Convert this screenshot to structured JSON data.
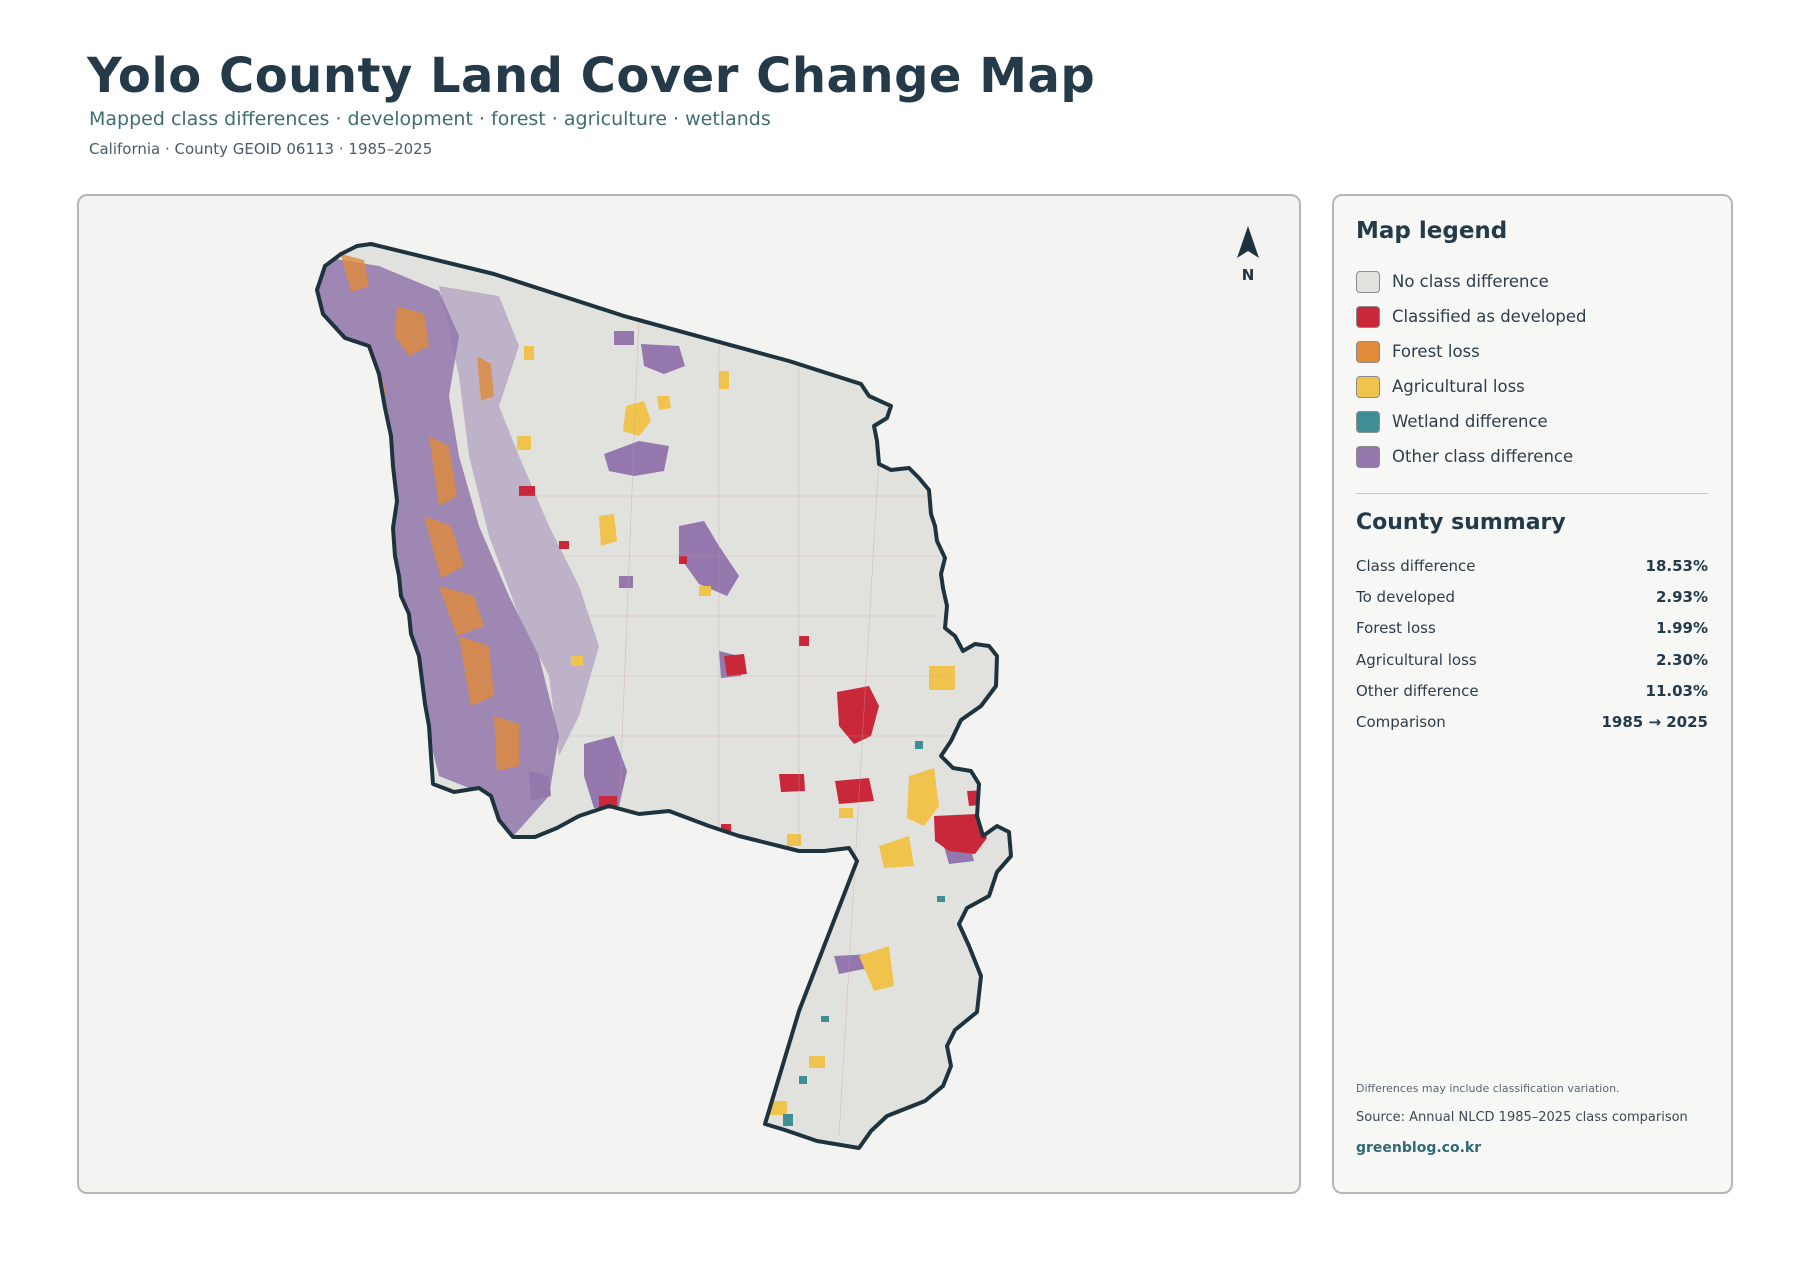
{
  "header": {
    "title": "Yolo County Land Cover Change Map",
    "subtitle": "Mapped class differences · development · forest · agriculture · wetlands",
    "meta": "California · County GEOID 06113 · 1985–2025"
  },
  "map": {
    "north_label": "N",
    "colors": {
      "outline": "#1f333f",
      "no_change": "#e1e2de",
      "developed": "#c8283a",
      "forest": "#e08a3a",
      "agriculture": "#f0c44c",
      "wetland": "#3f8e96",
      "other": "#9377ad"
    }
  },
  "legend": {
    "title": "Map legend",
    "items": [
      {
        "label": "No class difference",
        "color": "#e1e2de"
      },
      {
        "label": "Classified as developed",
        "color": "#c8283a"
      },
      {
        "label": "Forest loss",
        "color": "#e08a3a"
      },
      {
        "label": "Agricultural loss",
        "color": "#f0c44c"
      },
      {
        "label": "Wetland difference",
        "color": "#3f8e96"
      },
      {
        "label": "Other class difference",
        "color": "#9377ad"
      }
    ]
  },
  "summary": {
    "title": "County summary",
    "rows": [
      {
        "label": "Class difference",
        "value": "18.53%"
      },
      {
        "label": "To developed",
        "value": "2.93%"
      },
      {
        "label": "Forest loss",
        "value": "1.99%"
      },
      {
        "label": "Agricultural loss",
        "value": "2.30%"
      },
      {
        "label": "Other difference",
        "value": "11.03%"
      },
      {
        "label": "Comparison",
        "value": "1985 → 2025"
      }
    ]
  },
  "footer": {
    "note": "Differences may include classification variation.",
    "source": "Source: Annual NLCD 1985–2025 class comparison",
    "brand": "greenblog.co.kr"
  }
}
